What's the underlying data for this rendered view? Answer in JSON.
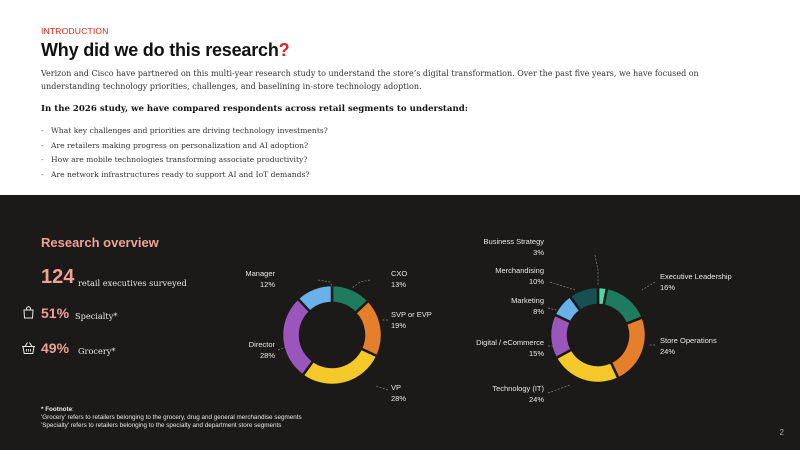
{
  "header": {
    "eyebrow": "INTRODUCTION",
    "title": "Why did we do this research",
    "title_mark": "?",
    "intro": "Verizon and Cisco have partnered on this multi-year research study to understand the store’s digital transformation. Over the past five years, we have focused on understanding technology priorities, challenges, and baselining in-store technology adoption.",
    "lead": "In the  2026 study, we have compared respondents across retail segments to understand:",
    "bullets": [
      "What key challenges and priorities are driving technology investments?",
      "Are retailers making progress on personalization and AI adoption?",
      "How are mobile technologies transforming associate productivity?",
      "Are network infrastructures ready to support AI and IoT demands?"
    ],
    "bullet_marker": "-"
  },
  "overview": {
    "title": "Research overview",
    "total_value": "124",
    "total_label": "retail executives surveyed",
    "specialty_value": "51%",
    "specialty_label": "Specialty*",
    "grocery_value": "49%",
    "grocery_label": "Grocery*",
    "specialty_icon": "shopping-bag-icon",
    "grocery_icon": "shopping-basket-icon"
  },
  "footnote": {
    "title": "* Footnote",
    "title_suffix": ":",
    "line1": "'Grocery' refers to retailers belonging to the grocery, drug and general merchandise segments",
    "line2": "'Specialty' refers to retailers belonging to the specialty and department store segments"
  },
  "page_number": "2",
  "colors": {
    "accent": "#e2231a",
    "salmon": "#f0a095",
    "dark_bg": "#1c1a19",
    "teal": "#1f7a5e",
    "orange": "#e57f2b",
    "yellow": "#f6c92a",
    "purple": "#9a56bd",
    "blue": "#6ab0ea",
    "dark_teal": "#175052",
    "mint": "#53d6a8"
  },
  "chart_data": [
    {
      "type": "pie",
      "title": "",
      "slices": [
        {
          "label": "CXO",
          "value": 13,
          "display": "13%",
          "color": "#1f7a5e"
        },
        {
          "label": "SVP or EVP",
          "value": 19,
          "display": "19%",
          "color": "#e57f2b"
        },
        {
          "label": "VP",
          "value": 28,
          "display": "28%",
          "color": "#f6c92a"
        },
        {
          "label": "Director",
          "value": 28,
          "display": "28%",
          "color": "#9a56bd"
        },
        {
          "label": "Manager",
          "value": 12,
          "display": "12%",
          "color": "#6ab0ea"
        }
      ]
    },
    {
      "type": "pie",
      "title": "",
      "slices": [
        {
          "label": "Business Strategy",
          "value": 3,
          "display": "3%",
          "color": "#53d6a8"
        },
        {
          "label": "Executive Leadership",
          "value": 16,
          "display": "16%",
          "color": "#1f7a5e"
        },
        {
          "label": "Store Operations",
          "value": 24,
          "display": "24%",
          "color": "#e57f2b"
        },
        {
          "label": "Technology (IT)",
          "value": 24,
          "display": "24%",
          "color": "#f6c92a"
        },
        {
          "label": "Digital / eCommerce",
          "value": 15,
          "display": "15%",
          "color": "#9a56bd"
        },
        {
          "label": "Marketing",
          "value": 8,
          "display": "8%",
          "color": "#6ab0ea"
        },
        {
          "label": "Merchandising",
          "value": 10,
          "display": "10%",
          "color": "#175052"
        }
      ]
    }
  ]
}
